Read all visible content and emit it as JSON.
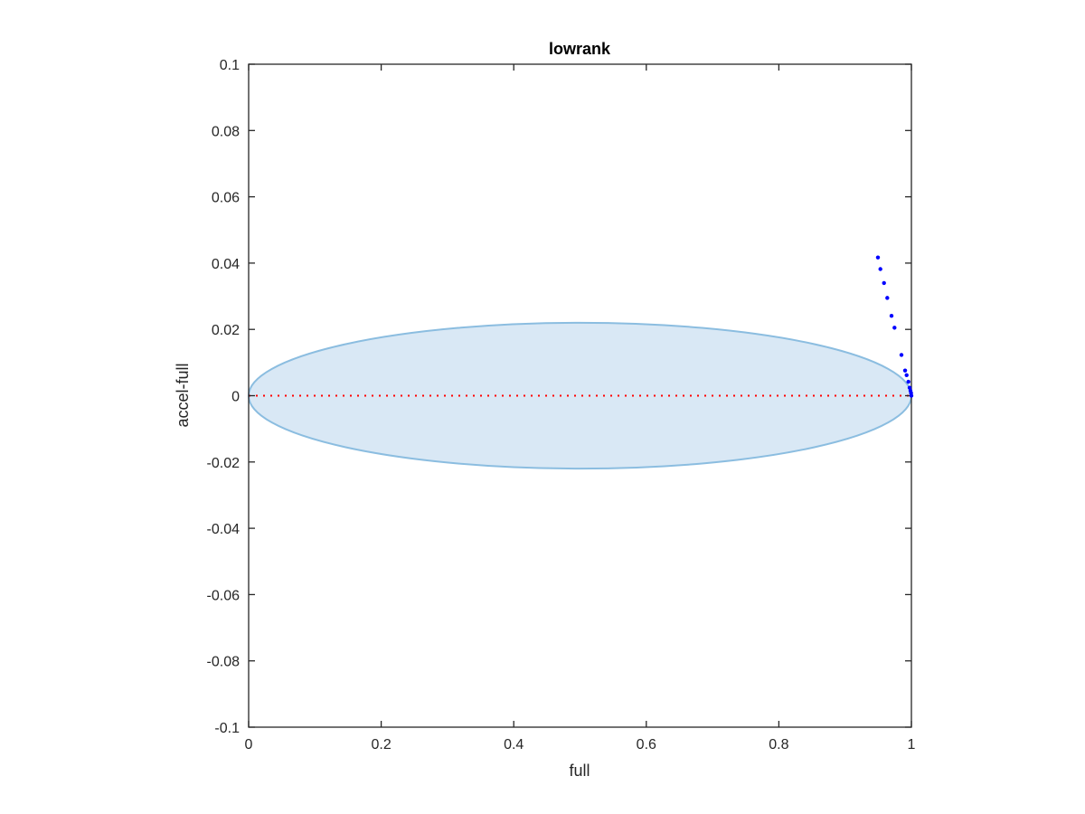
{
  "chart_data": {
    "type": "scatter",
    "title": "lowrank",
    "xlabel": "full",
    "ylabel": "accel-full",
    "xlim": [
      0,
      1
    ],
    "ylim": [
      -0.1,
      0.1
    ],
    "xticks": [
      0,
      0.2,
      0.4,
      0.6,
      0.8,
      1
    ],
    "xtick_labels": [
      "0",
      "0.2",
      "0.4",
      "0.6",
      "0.8",
      "1"
    ],
    "yticks": [
      0.1,
      0.08,
      0.06,
      0.04,
      0.02,
      0,
      -0.02,
      -0.04,
      -0.06,
      -0.08,
      -0.1
    ],
    "ytick_labels": [
      "0.1",
      "0.08",
      "0.06",
      "0.04",
      "0.02",
      "0",
      "-0.02",
      "-0.04",
      "-0.06",
      "-0.08",
      "-0.1"
    ],
    "grid": false,
    "ellipse": {
      "center": [
        0.5,
        0
      ],
      "semi_axes": [
        0.5,
        0.022
      ],
      "fill": "#d9e8f5",
      "stroke": "#8bbde0"
    },
    "reference_line": {
      "y": 0,
      "color": "#ff0000",
      "style": "dotted"
    },
    "series": [
      {
        "name": "points",
        "color": "#0000ff",
        "x": [
          0.9495,
          0.9532,
          0.9587,
          0.9636,
          0.97,
          0.9745,
          0.985,
          0.9905,
          0.9928,
          0.9955,
          0.9973,
          0.9986,
          0.9995,
          1.0
        ],
        "y": [
          0.0417,
          0.0382,
          0.034,
          0.0295,
          0.0241,
          0.0205,
          0.0123,
          0.0076,
          0.0062,
          0.0042,
          0.0024,
          0.0015,
          0.0008,
          0.0
        ]
      }
    ]
  }
}
